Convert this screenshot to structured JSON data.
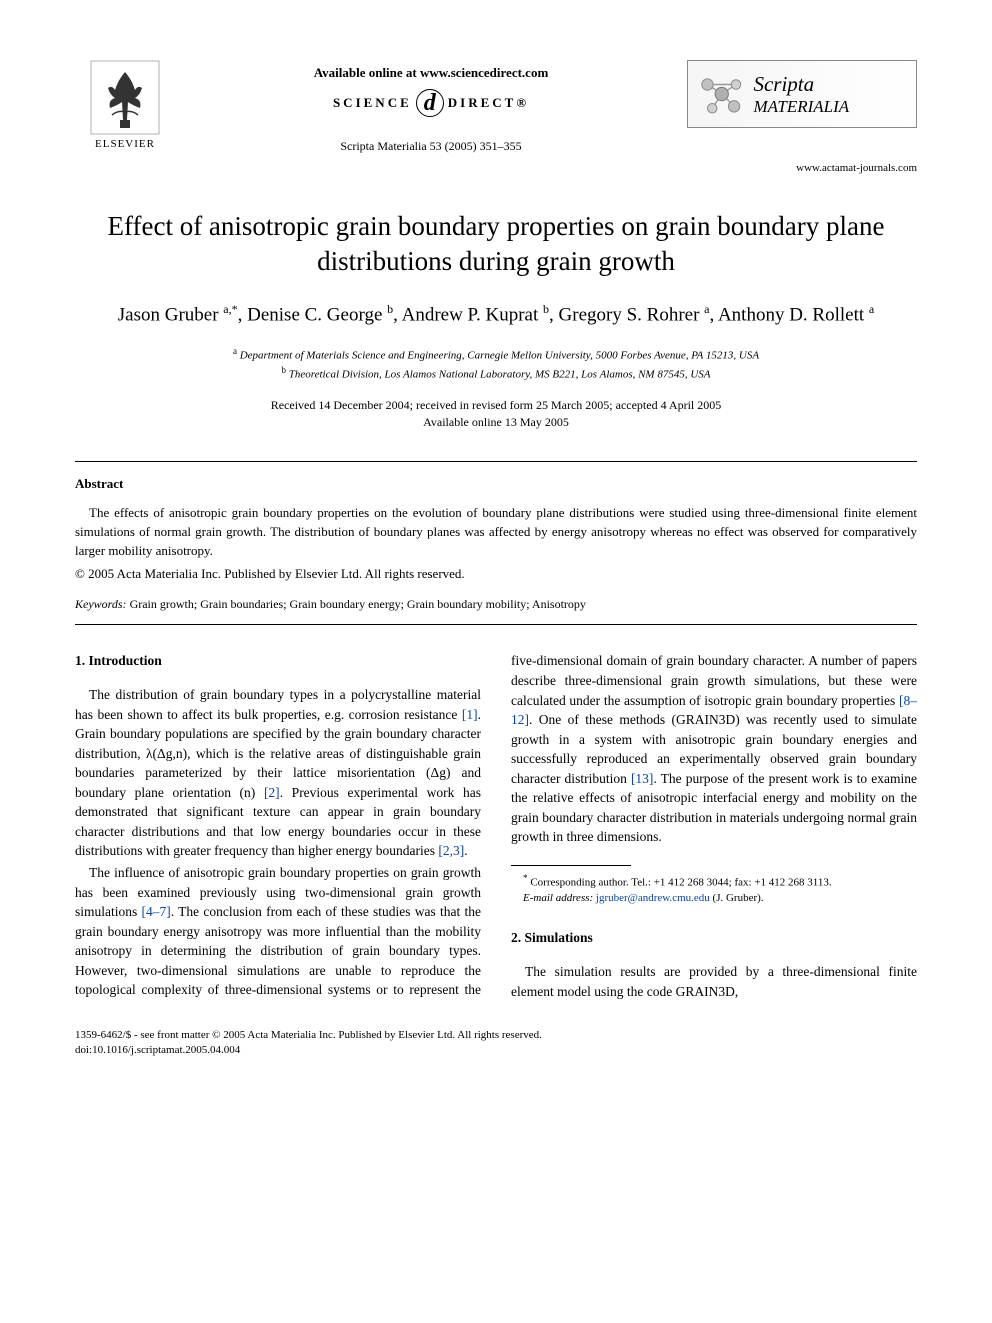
{
  "header": {
    "elsevier_label": "ELSEVIER",
    "available_text": "Available online at www.sciencedirect.com",
    "science_direct_left": "SCIENCE",
    "science_direct_right": "DIRECT®",
    "citation": "Scripta Materialia 53 (2005) 351–355",
    "journal_name_scripta": "Scripta",
    "journal_name_materialia": " MATERIALIA",
    "journal_url": "www.actamat-journals.com"
  },
  "title": "Effect of anisotropic grain boundary properties on grain boundary plane distributions during grain growth",
  "authors_html": "Jason Gruber <sup>a,*</sup>, Denise C. George <sup>b</sup>, Andrew P. Kuprat <sup>b</sup>, Gregory S. Rohrer <sup>a</sup>, Anthony D. Rollett <sup>a</sup>",
  "affiliations": {
    "a": "Department of Materials Science and Engineering, Carnegie Mellon University, 5000 Forbes Avenue, PA 15213, USA",
    "b": "Theoretical Division, Los Alamos National Laboratory, MS B221, Los Alamos, NM 87545, USA"
  },
  "dates": {
    "line1": "Received 14 December 2004; received in revised form 25 March 2005; accepted 4 April 2005",
    "line2": "Available online 13 May 2005"
  },
  "abstract": {
    "heading": "Abstract",
    "text": "The effects of anisotropic grain boundary properties on the evolution of boundary plane distributions were studied using three-dimensional finite element simulations of normal grain growth. The distribution of boundary planes was affected by energy anisotropy whereas no effect was observed for comparatively larger mobility anisotropy.",
    "copyright": "© 2005 Acta Materialia Inc. Published by Elsevier Ltd. All rights reserved."
  },
  "keywords": {
    "label": "Keywords:",
    "text": " Grain growth; Grain boundaries; Grain boundary energy; Grain boundary mobility; Anisotropy"
  },
  "sections": {
    "intro_heading": "1. Introduction",
    "intro_p1_a": "The distribution of grain boundary types in a polycrystalline material has been shown to affect its bulk properties, e.g. corrosion resistance ",
    "intro_p1_ref1": "[1]",
    "intro_p1_b": ". Grain boundary populations are specified by the grain boundary character distribution, λ(Δg,n), which is the relative areas of distinguishable grain boundaries parameterized by their lattice misorientation (Δg) and boundary plane orientation (n) ",
    "intro_p1_ref2": "[2]",
    "intro_p1_c": ". Previous experimental work has demonstrated that significant texture can appear in grain boundary character distributions and that low energy boundaries occur in these distributions with greater frequency than higher energy boundaries ",
    "intro_p1_ref3": "[2,3]",
    "intro_p1_d": ".",
    "intro_p2_a": "The influence of anisotropic grain boundary properties on grain growth has been examined previously using two-dimensional grain growth simulations ",
    "intro_p2_ref1": "[4–7]",
    "intro_p2_b": ". The conclusion from each of these studies was that the grain boundary energy anisotropy was more influential than the mobility anisotropy in determining the distribution of grain boundary types. However, two-dimensional simulations are unable to reproduce the topological complexity of three-dimensional systems or to represent the five-dimensional domain of grain boundary character. A number of papers describe three-dimensional grain growth simulations, but these were calculated under the assumption of isotropic grain boundary properties ",
    "intro_p2_ref2": "[8–12]",
    "intro_p2_c": ". One of these methods (GRAIN3D) was recently used to simulate growth in a system with anisotropic grain boundary energies and successfully reproduced an experimentally observed grain boundary character distribution ",
    "intro_p2_ref3": "[13]",
    "intro_p2_d": ". The purpose of the present work is to examine the relative effects of anisotropic interfacial energy and mobility on the grain boundary character distribution in materials undergoing normal grain growth in three dimensions.",
    "sim_heading": "2. Simulations",
    "sim_p1": "The simulation results are provided by a three-dimensional finite element model using the code GRAIN3D,"
  },
  "footnote": {
    "corr": "Corresponding author. Tel.: +1 412 268 3044; fax: +1 412 268 3113.",
    "email_label": "E-mail address:",
    "email": "jgruber@andrew.cmu.edu",
    "email_name": " (J. Gruber)."
  },
  "footer": {
    "line1": "1359-6462/$ - see front matter © 2005 Acta Materialia Inc. Published by Elsevier Ltd. All rights reserved.",
    "line2": "doi:10.1016/j.scriptamat.2005.04.004"
  },
  "colors": {
    "link": "#0645ad",
    "text": "#000000",
    "background": "#ffffff",
    "box_border": "#888888"
  },
  "typography": {
    "body_font": "Times New Roman",
    "title_size_pt": 20,
    "author_size_pt": 14,
    "body_size_pt": 10,
    "small_size_pt": 8
  }
}
